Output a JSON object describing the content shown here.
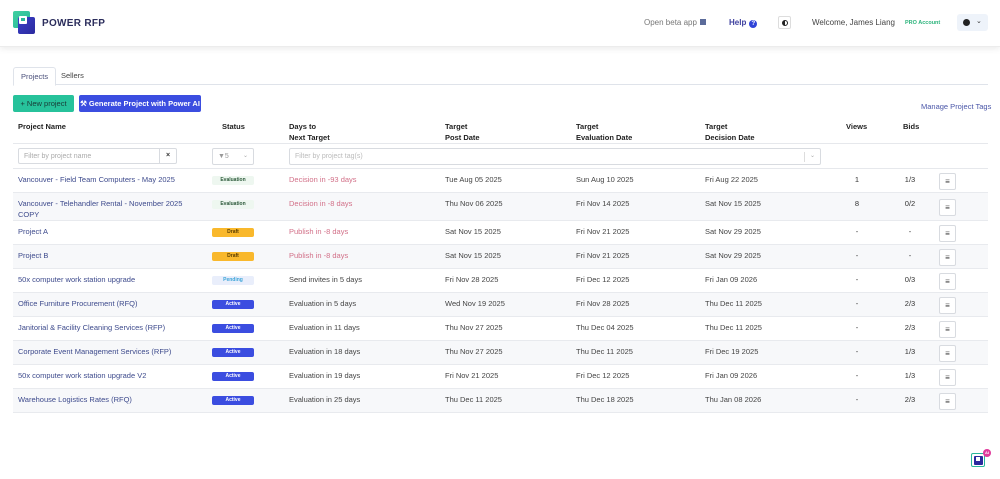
{
  "header": {
    "brand": "POWER RFP",
    "beta_link": "Open beta app",
    "help": "Help",
    "help_icon": "?",
    "welcome": "Welcome, James Liang",
    "account_badge": "PRO Account",
    "chevron": "⌄"
  },
  "tabs": [
    {
      "label": "Projects",
      "active": true
    },
    {
      "label": "Sellers",
      "active": false
    }
  ],
  "toolbar": {
    "new_project": "+ New project",
    "generate_ai": "⚒ Generate Project with Power AI",
    "manage_tags": "Manage Project Tags"
  },
  "columns": {
    "name": "Project Name",
    "status": "Status",
    "days_1": "Days to",
    "days_2": "Next Target",
    "post_1": "Target",
    "post_2": "Post Date",
    "eval_1": "Target",
    "eval_2": "Evaluation Date",
    "dec_1": "Target",
    "dec_2": "Decision Date",
    "views": "Views",
    "bids": "Bids"
  },
  "filters": {
    "name_placeholder": "Filter by project name",
    "clear": "×",
    "status_value": "▼5",
    "status_chevron": "⌄",
    "tags_placeholder": "Filter by project tag(s)",
    "tags_chevron": "⌄"
  },
  "status_colors": {
    "Evaluation": {
      "bg": "#eef7f0",
      "fg": "#2c5a3a"
    },
    "Draft": {
      "bg": "#f9b82c",
      "fg": "#5a3d00"
    },
    "Pending": {
      "bg": "#e9eefb",
      "fg": "#3aa4d8"
    },
    "Active": {
      "bg": "#3b4de0",
      "fg": "#ffffff"
    }
  },
  "rows": [
    {
      "name": "Vancouver - Field Team Computers - May 2025",
      "status": "Evaluation",
      "days": "Decision in -93 days",
      "post": "Tue Aug 05 2025",
      "eval": "Sun Aug 10 2025",
      "decision": "Fri Aug 22 2025",
      "views": "1",
      "bids": "1/3",
      "menu": "≡"
    },
    {
      "name": "Vancouver - Telehandler Rental - November 2025 COPY",
      "status": "Evaluation",
      "days": "Decision in -8 days",
      "post": "Thu Nov 06 2025",
      "eval": "Fri Nov 14 2025",
      "decision": "Sat Nov 15 2025",
      "views": "8",
      "bids": "0/2",
      "menu": "≡"
    },
    {
      "name": "Project A",
      "status": "Draft",
      "days": "Publish in -8 days",
      "post": "Sat Nov 15 2025",
      "eval": "Fri Nov 21 2025",
      "decision": "Sat Nov 29 2025",
      "views": "-",
      "bids": "-",
      "menu": "≡"
    },
    {
      "name": "Project B",
      "status": "Draft",
      "days": "Publish in -8 days",
      "post": "Sat Nov 15 2025",
      "eval": "Fri Nov 21 2025",
      "decision": "Sat Nov 29 2025",
      "views": "-",
      "bids": "-",
      "menu": "≡"
    },
    {
      "name": "50x computer work station upgrade",
      "status": "Pending",
      "days": "Send invites in 5 days",
      "post": "Fri Nov 28 2025",
      "eval": "Fri Dec 12 2025",
      "decision": "Fri Jan 09 2026",
      "views": "-",
      "bids": "0/3",
      "menu": "≡"
    },
    {
      "name": "Office Furniture Procurement (RFQ)",
      "status": "Active",
      "days": "Evaluation in 5 days",
      "post": "Wed Nov 19 2025",
      "eval": "Fri Nov 28 2025",
      "decision": "Thu Dec 11 2025",
      "views": "-",
      "bids": "2/3",
      "menu": "≡"
    },
    {
      "name": "Janitorial & Facility Cleaning Services (RFP)",
      "status": "Active",
      "days": "Evaluation in 11 days",
      "post": "Thu Nov 27 2025",
      "eval": "Thu Dec 04 2025",
      "decision": "Thu Dec 11 2025",
      "views": "-",
      "bids": "2/3",
      "menu": "≡"
    },
    {
      "name": "Corporate Event Management Services (RFP)",
      "status": "Active",
      "days": "Evaluation in 18 days",
      "post": "Thu Nov 27 2025",
      "eval": "Thu Dec 11 2025",
      "decision": "Fri Dec 19 2025",
      "views": "-",
      "bids": "1/3",
      "menu": "≡"
    },
    {
      "name": "50x computer work station upgrade V2",
      "status": "Active",
      "days": "Evaluation in 19 days",
      "post": "Fri Nov 21 2025",
      "eval": "Fri Dec 12 2025",
      "decision": "Fri Jan 09 2026",
      "views": "-",
      "bids": "1/3",
      "menu": "≡"
    },
    {
      "name": "Warehouse Logistics Rates (RFQ)",
      "status": "Active",
      "days": "Evaluation in 25 days",
      "post": "Thu Dec 11 2025",
      "eval": "Thu Dec 18 2025",
      "decision": "Thu Jan 08 2026",
      "views": "-",
      "bids": "2/3",
      "menu": "≡"
    }
  ],
  "fab": {
    "badge": "AI"
  }
}
